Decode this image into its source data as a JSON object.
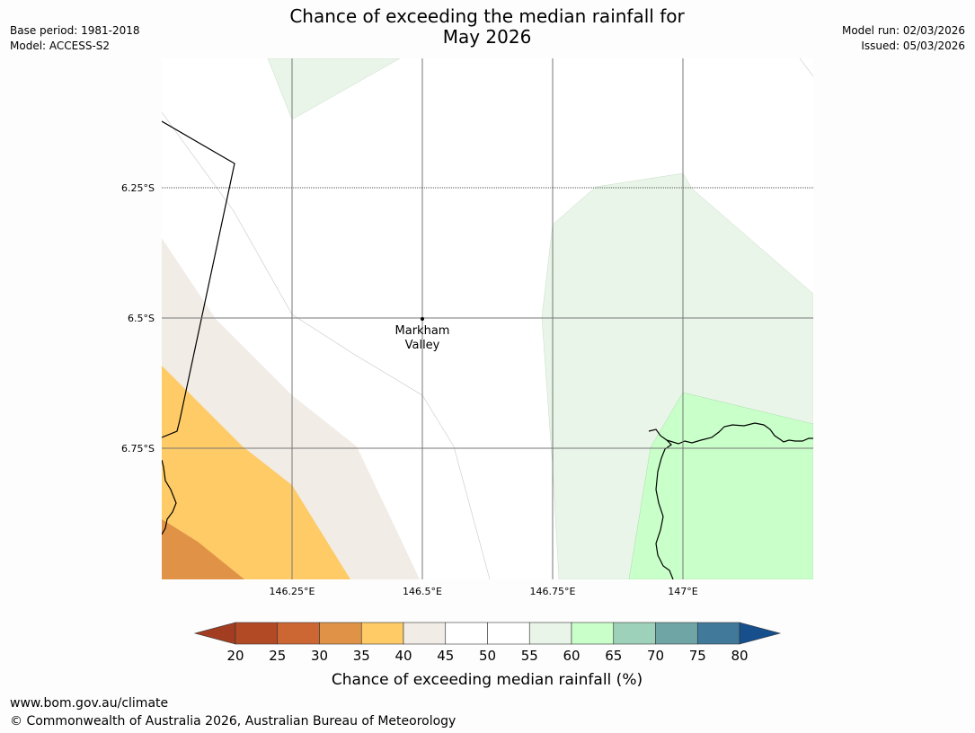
{
  "header": {
    "title_line1": "Chance of exceeding the median rainfall for",
    "title_line2": "May 2026",
    "base_period": "Base period: 1981-2018",
    "model": "Model: ACCESS-S2",
    "model_run": "Model run: 02/03/2026",
    "issued": "Issued: 05/03/2026"
  },
  "map": {
    "lat_labels": [
      "6.25°S",
      "6.5°S",
      "6.75°S"
    ],
    "lon_labels": [
      "146.25°E",
      "146.5°E",
      "146.75°E",
      "147°E"
    ],
    "place_name_line1": "Markham",
    "place_name_line2": "Valley"
  },
  "legend": {
    "ticks": [
      "20",
      "25",
      "30",
      "35",
      "40",
      "45",
      "50",
      "55",
      "60",
      "65",
      "70",
      "75",
      "80"
    ],
    "title": "Chance of exceeding median rainfall (%)",
    "colors": [
      "#a33d22",
      "#b34a26",
      "#cc6633",
      "#e09347",
      "#fecb66",
      "#f1ece6",
      "#ffffff",
      "#ffffff",
      "#e9f5e9",
      "#c9ffc9",
      "#9ed1b9",
      "#6fa5a5",
      "#41799b",
      "#164f8c"
    ]
  },
  "footer": {
    "url": "www.bom.gov.au/climate",
    "copyright": "© Commonwealth of Australia 2026, Australian Bureau of Meteorology"
  }
}
